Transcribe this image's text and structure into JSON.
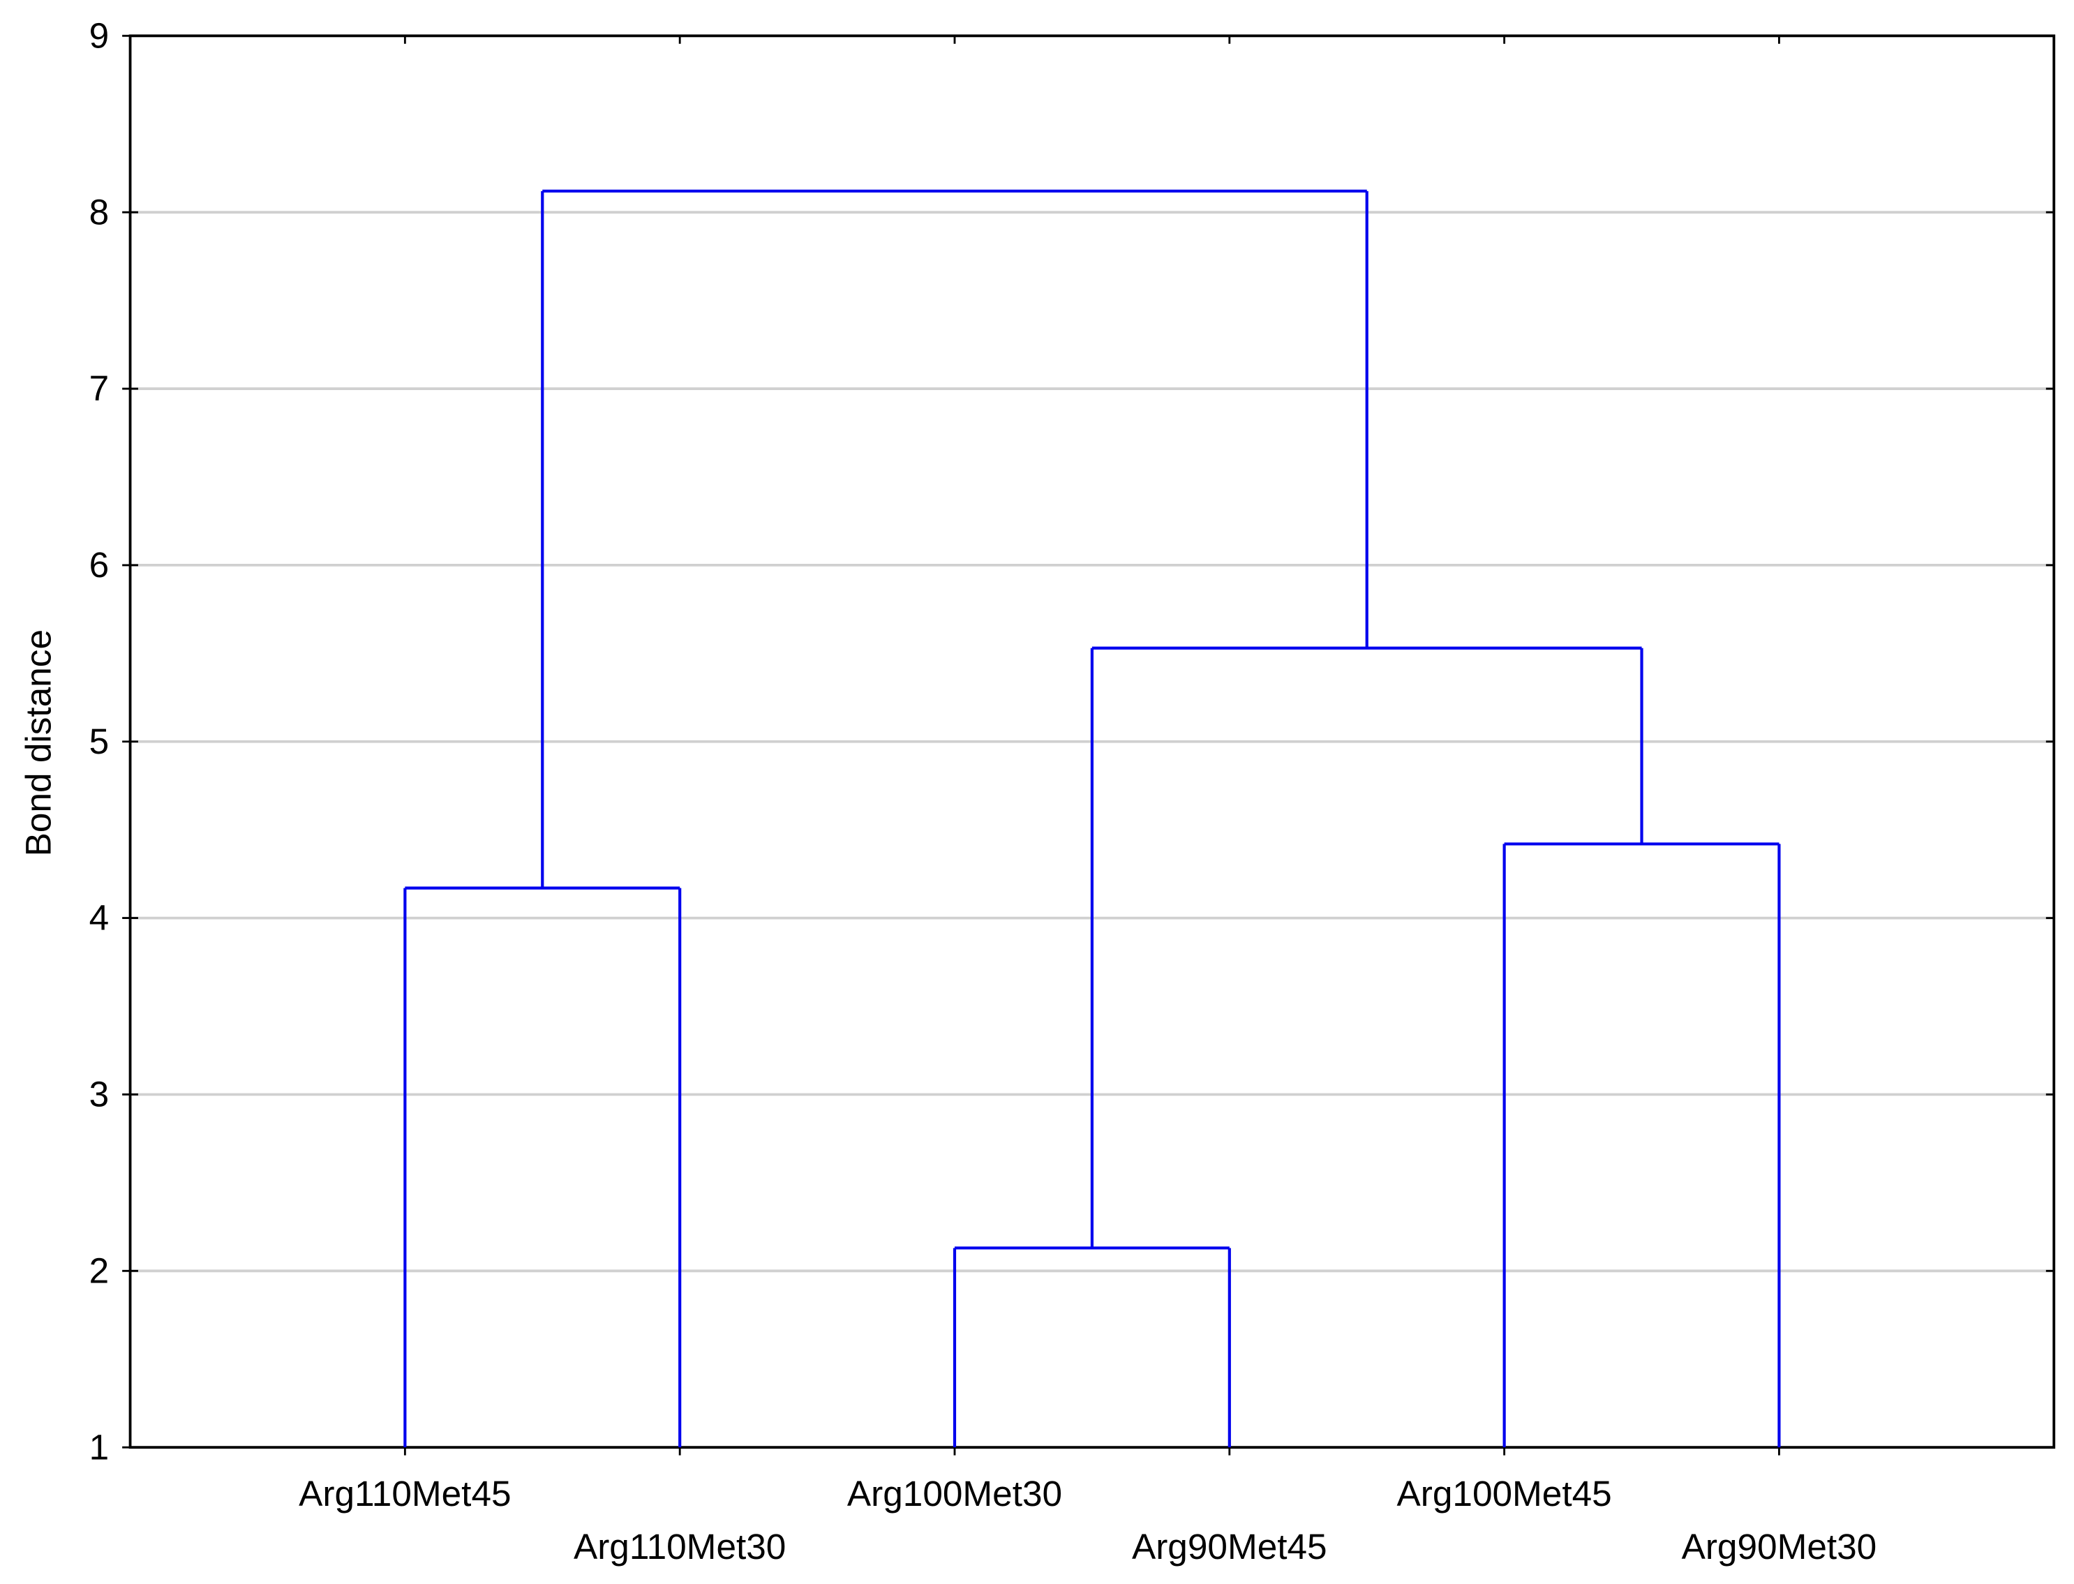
{
  "chart_data": {
    "type": "dendrogram",
    "y_label": "Bond distance",
    "leaves": [
      "Arg110Met45",
      "Arg110Met30",
      "Arg100Met30",
      "Arg90Met45",
      "Arg100Met45",
      "Arg90Met30"
    ],
    "merges": [
      {
        "join": [
          0,
          1
        ],
        "height": 4.17
      },
      {
        "join": [
          2,
          3
        ],
        "height": 2.13
      },
      {
        "join": [
          4,
          5
        ],
        "height": 4.42
      },
      {
        "join": [
          7,
          8
        ],
        "height": 5.53
      },
      {
        "join": [
          6,
          9
        ],
        "height": 8.12
      }
    ],
    "color": "#0000ee",
    "ylim": [
      1,
      9
    ],
    "yticks": [
      1,
      2,
      3,
      4,
      5,
      6,
      7,
      8,
      9
    ],
    "grid": true
  }
}
